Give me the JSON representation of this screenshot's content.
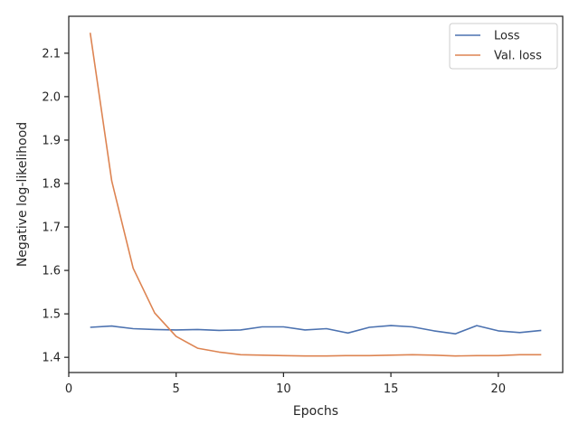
{
  "chart_data": {
    "type": "line",
    "xlabel": "Epochs",
    "ylabel": "Negative log-likelihood",
    "xlim": [
      0,
      23
    ],
    "ylim": [
      1.365,
      2.185
    ],
    "xticks": [
      0,
      5,
      10,
      15,
      20
    ],
    "yticks": [
      1.4,
      1.5,
      1.6,
      1.7,
      1.8,
      1.9,
      2.0,
      2.1
    ],
    "x": [
      1,
      2,
      3,
      4,
      5,
      6,
      7,
      8,
      9,
      10,
      11,
      12,
      13,
      14,
      15,
      16,
      17,
      18,
      19,
      20,
      21,
      22
    ],
    "series": [
      {
        "name": "Loss",
        "color": "#4c72b0",
        "values": [
          1.469,
          1.472,
          1.466,
          1.464,
          1.463,
          1.464,
          1.462,
          1.463,
          1.47,
          1.47,
          1.463,
          1.466,
          1.456,
          1.469,
          1.473,
          1.47,
          1.461,
          1.454,
          1.473,
          1.461,
          1.457,
          1.462
        ]
      },
      {
        "name": "Val. loss",
        "color": "#dd8452",
        "values": [
          2.147,
          1.806,
          1.605,
          1.502,
          1.448,
          1.421,
          1.412,
          1.406,
          1.405,
          1.404,
          1.403,
          1.403,
          1.404,
          1.404,
          1.405,
          1.406,
          1.405,
          1.403,
          1.404,
          1.404,
          1.406,
          1.406
        ]
      }
    ],
    "grid": false,
    "legend": "top-right"
  }
}
